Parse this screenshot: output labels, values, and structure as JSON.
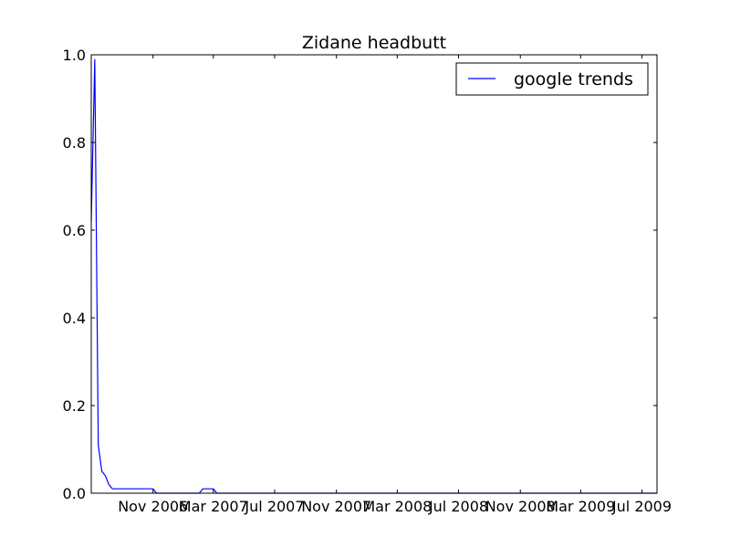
{
  "chart_data": {
    "type": "line",
    "title": "Zidane headbutt",
    "xlabel": "",
    "ylabel": "",
    "x_type": "date",
    "xlim": [
      "2006-07-01",
      "2009-07-31"
    ],
    "ylim": [
      0,
      1
    ],
    "yticks": [
      "0.0",
      "0.2",
      "0.4",
      "0.6",
      "0.8",
      "1.0"
    ],
    "xticks": [
      {
        "date": "2006-11-01",
        "label": "Nov 2006"
      },
      {
        "date": "2007-03-01",
        "label": "Mar 2007"
      },
      {
        "date": "2007-07-01",
        "label": "Jul 2007"
      },
      {
        "date": "2007-11-01",
        "label": "Nov 2007"
      },
      {
        "date": "2008-03-01",
        "label": "Mar 2008"
      },
      {
        "date": "2008-07-01",
        "label": "Jul 2008"
      },
      {
        "date": "2008-11-01",
        "label": "Nov 2008"
      },
      {
        "date": "2009-03-01",
        "label": "Mar 2009"
      },
      {
        "date": "2009-07-01",
        "label": "Jul 2009"
      }
    ],
    "grid": false,
    "legend_position": "top-right",
    "series": [
      {
        "name": "google trends",
        "color": "#0000ff",
        "points": [
          {
            "x": "2006-07-01",
            "y": 0.62
          },
          {
            "x": "2006-07-08",
            "y": 0.99
          },
          {
            "x": "2006-07-15",
            "y": 0.11
          },
          {
            "x": "2006-07-22",
            "y": 0.05
          },
          {
            "x": "2006-07-29",
            "y": 0.04
          },
          {
            "x": "2006-08-05",
            "y": 0.02
          },
          {
            "x": "2006-08-12",
            "y": 0.01
          },
          {
            "x": "2006-11-01",
            "y": 0.01
          },
          {
            "x": "2006-11-08",
            "y": 0.0
          },
          {
            "x": "2007-02-01",
            "y": 0.0
          },
          {
            "x": "2007-02-08",
            "y": 0.01
          },
          {
            "x": "2007-03-01",
            "y": 0.01
          },
          {
            "x": "2007-03-08",
            "y": 0.0
          },
          {
            "x": "2009-07-31",
            "y": 0.0
          }
        ]
      }
    ]
  }
}
